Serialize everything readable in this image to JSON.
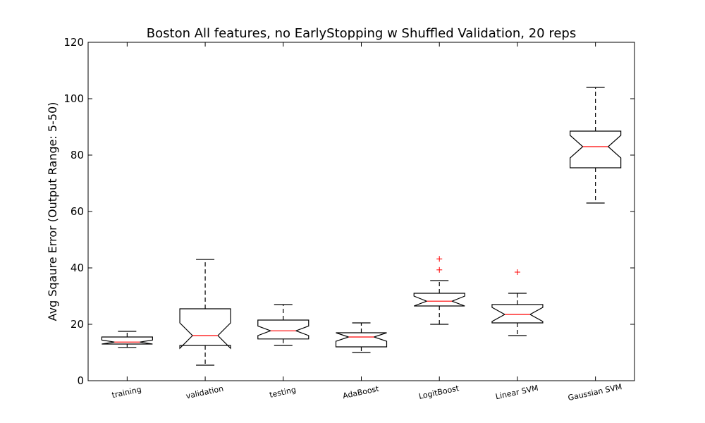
{
  "chart_data": {
    "type": "box",
    "title": "Boston All features, no EarlyStopping w Shuffled Validation, 20 reps",
    "xlabel": "",
    "ylabel": "Avg Sqaure Error (Output Range: 5-50)",
    "ylim": [
      0,
      120
    ],
    "yticks": [
      0,
      20,
      40,
      60,
      80,
      100,
      120
    ],
    "notched": true,
    "colors": {
      "box": "#000000",
      "median": "#ff0000",
      "outlier": "#ff0000"
    },
    "categories": [
      "training",
      "validation",
      "testing",
      "AdaBoost",
      "LogitBoost",
      "Linear SVM",
      "Gaussian SVM"
    ],
    "boxes": [
      {
        "label": "training",
        "whisker_low": 11.8,
        "q1": 13.0,
        "median": 13.7,
        "q3": 15.5,
        "whisker_high": 17.5,
        "notch": [
          13.0,
          14.4
        ],
        "outliers": []
      },
      {
        "label": "validation",
        "whisker_low": 5.5,
        "q1": 12.5,
        "median": 16.0,
        "q3": 25.5,
        "whisker_high": 43.0,
        "notch": [
          11.5,
          20.5
        ],
        "outliers": []
      },
      {
        "label": "testing",
        "whisker_low": 12.5,
        "q1": 14.8,
        "median": 17.7,
        "q3": 21.5,
        "whisker_high": 27.0,
        "notch": [
          16.0,
          19.4
        ],
        "outliers": []
      },
      {
        "label": "AdaBoost",
        "whisker_low": 10.0,
        "q1": 12.0,
        "median": 15.5,
        "q3": 17.0,
        "whisker_high": 20.5,
        "notch": [
          14.0,
          17.0
        ],
        "outliers": []
      },
      {
        "label": "LogitBoost",
        "whisker_low": 20.0,
        "q1": 26.5,
        "median": 28.2,
        "q3": 31.0,
        "whisker_high": 35.5,
        "notch": [
          26.5,
          30.0
        ],
        "outliers": [
          39.3,
          43.2
        ]
      },
      {
        "label": "Linear SVM",
        "whisker_low": 16.0,
        "q1": 20.5,
        "median": 23.5,
        "q3": 27.0,
        "whisker_high": 31.0,
        "notch": [
          21.0,
          26.0
        ],
        "outliers": [
          38.5
        ]
      },
      {
        "label": "Gaussian SVM",
        "whisker_low": 63.0,
        "q1": 75.5,
        "median": 83.0,
        "q3": 88.5,
        "whisker_high": 104.0,
        "notch": [
          79.0,
          87.0
        ],
        "outliers": []
      }
    ]
  }
}
